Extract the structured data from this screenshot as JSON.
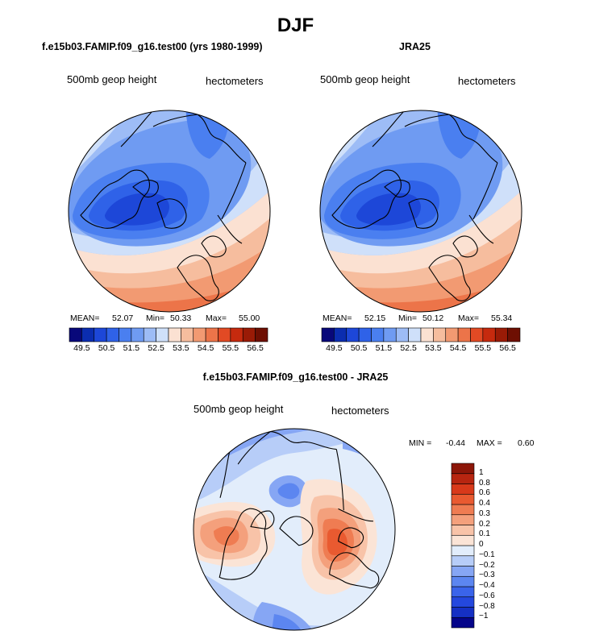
{
  "figure": {
    "title": "DJF"
  },
  "panels": [
    {
      "title": "f.e15b03.FAMIP.f09_g16.test00 (yrs 1980-1999)",
      "variable": "500mb geop height",
      "units": "hectometers",
      "stats": {
        "mean_label": "MEAN=",
        "mean": "52.07",
        "min_label": "Min=",
        "min": "50.33",
        "max_label": "Max=",
        "max": "55.00"
      }
    },
    {
      "title": "JRA25",
      "variable": "500mb geop height",
      "units": "hectometers",
      "stats": {
        "mean_label": "MEAN=",
        "mean": "52.15",
        "min_label": "Min=",
        "min": "50.12",
        "max_label": "Max=",
        "max": "55.34"
      }
    },
    {
      "title": "f.e15b03.FAMIP.f09_g16.test00 - JRA25",
      "variable": "500mb geop height",
      "units": "hectometers",
      "stats": {
        "min_label": "MIN =",
        "min": "-0.44",
        "max_label": "MAX =",
        "max": "0.60"
      }
    }
  ],
  "chart_data": [
    {
      "type": "heatmap",
      "projection": "north polar stereographic",
      "title": "f.e15b03.FAMIP.f09_g16.test00 (yrs 1980-1999)",
      "colorbar_levels": [
        "49.5",
        "50.5",
        "51.5",
        "52.5",
        "53.5",
        "54.5",
        "55.5",
        "56.5"
      ],
      "levels": [
        49.5,
        50,
        50.5,
        51,
        51.5,
        52,
        52.5,
        53,
        53.5,
        54,
        54.5,
        55,
        55.5,
        56,
        56.5
      ],
      "value_range": [
        50.33,
        55.0
      ],
      "mean": 52.07
    },
    {
      "type": "heatmap",
      "projection": "north polar stereographic",
      "title": "JRA25",
      "colorbar_levels": [
        "49.5",
        "50.5",
        "51.5",
        "52.5",
        "53.5",
        "54.5",
        "55.5",
        "56.5"
      ],
      "levels": [
        49.5,
        50,
        50.5,
        51,
        51.5,
        52,
        52.5,
        53,
        53.5,
        54,
        54.5,
        55,
        55.5,
        56,
        56.5
      ],
      "value_range": [
        50.12,
        55.34
      ],
      "mean": 52.15
    },
    {
      "type": "heatmap",
      "projection": "north polar stereographic",
      "title": "f.e15b03.FAMIP.f09_g16.test00 - JRA25",
      "colorbar_levels": [
        "1",
        "0.8",
        "0.6",
        "0.4",
        "0.3",
        "0.2",
        "0.1",
        "0",
        "−0.1",
        "−0.2",
        "−0.3",
        "−0.4",
        "−0.6",
        "−0.8",
        "−1"
      ],
      "value_range": [
        -0.44,
        0.6
      ]
    }
  ],
  "colors": {
    "abs_scale": [
      "#08087a",
      "#0b2db0",
      "#1d47d8",
      "#2f62e8",
      "#4a7ff0",
      "#6f9bf2",
      "#9dbcf6",
      "#cfe0fa",
      "#fbe1d2",
      "#f6bd9e",
      "#f29a72",
      "#ec7449",
      "#e24a24",
      "#c62a0e",
      "#9a1b06",
      "#6e0f02"
    ],
    "diff_scale": [
      "#05058a",
      "#1530c4",
      "#2448de",
      "#3a64ea",
      "#5c86f0",
      "#86a6f4",
      "#b7cdf8",
      "#e2edfb",
      "#fbe4d6",
      "#f8c3a8",
      "#f4a07c",
      "#ef7c52",
      "#e95a30",
      "#d8391a",
      "#b72510",
      "#8c1608"
    ]
  }
}
